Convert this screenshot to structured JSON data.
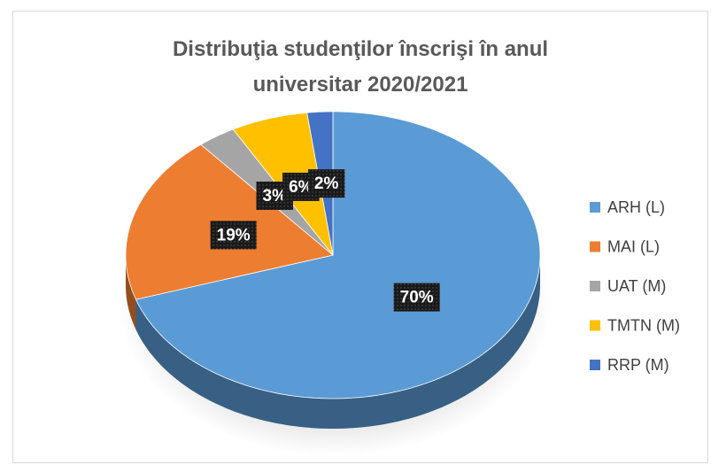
{
  "chart_data": {
    "type": "pie",
    "title": "Distribuţia studenţilor înscrişi în anul universitar 2020/2021",
    "categories": [
      "ARH (L)",
      "MAI (L)",
      "UAT (M)",
      "TMTN (M)",
      "RRP (M)"
    ],
    "values": [
      70,
      19,
      3,
      6,
      2
    ],
    "value_labels": [
      "70%",
      "19%",
      "3%",
      "6%",
      "2%"
    ],
    "colors": [
      "#5b9bd5",
      "#ed7d31",
      "#a5a5a5",
      "#ffc000",
      "#4472c4"
    ],
    "legend": "right"
  }
}
